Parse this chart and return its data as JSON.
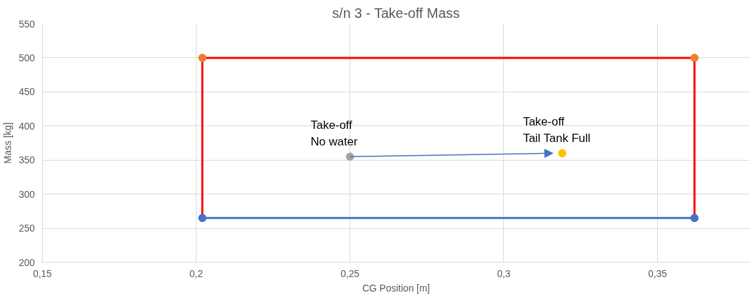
{
  "chart_data": {
    "type": "line",
    "title": "s/n 3 - Take-off Mass",
    "xlabel": "CG Position [m]",
    "ylabel": "Mass [kg]",
    "xlim": [
      0.15,
      0.38
    ],
    "ylim": [
      200,
      550
    ],
    "xticks": [
      {
        "value": 0.15,
        "label": "0,15"
      },
      {
        "value": 0.2,
        "label": "0,2"
      },
      {
        "value": 0.25,
        "label": "0,25"
      },
      {
        "value": 0.3,
        "label": "0,3"
      },
      {
        "value": 0.35,
        "label": "0,35"
      }
    ],
    "yticks": [
      200,
      250,
      300,
      350,
      400,
      450,
      500,
      550
    ],
    "grid": true,
    "series": [
      {
        "color": "#ff0000",
        "marker": "none",
        "x": [
          0.202,
          0.202,
          0.362,
          0.362
        ],
        "values": [
          265,
          500,
          500,
          265
        ]
      },
      {
        "color": "#4472c4",
        "marker": "circle",
        "x": [
          0.202,
          0.362
        ],
        "values": [
          265,
          265
        ]
      },
      {
        "type": "scatter",
        "color": "#ed7d31",
        "x": [
          0.202,
          0.362
        ],
        "values": [
          500,
          500
        ]
      },
      {
        "type": "scatter",
        "color": "#a5a5a5",
        "x": [
          0.25
        ],
        "values": [
          355
        ]
      },
      {
        "type": "scatter",
        "color": "#ffc000",
        "x": [
          0.319
        ],
        "values": [
          360
        ]
      }
    ],
    "annotations": [
      {
        "text": "Take-off\nNo water",
        "x": 0.25,
        "y": 355
      },
      {
        "text": "Take-off\nTail Tank Full",
        "x": 0.319,
        "y": 360
      }
    ]
  }
}
